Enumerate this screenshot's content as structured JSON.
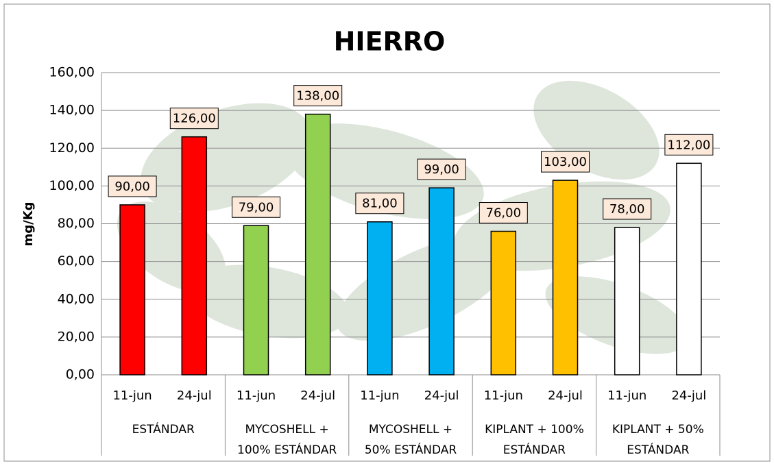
{
  "chart_data": {
    "type": "bar",
    "title": "HIERRO",
    "y_label": "mg/Kg",
    "categories": [
      "11-jun",
      "24-jul",
      "11-jun",
      "24-jul",
      "11-jun",
      "24-jul",
      "11-jun",
      "24-jul",
      "11-jun",
      "24-jul"
    ],
    "groups": [
      [
        "ESTÁNDAR"
      ],
      [
        "MYCOSHELL +",
        "100% ESTÁNDAR"
      ],
      [
        "MYCOSHELL +",
        "50% ESTÁNDAR"
      ],
      [
        "KIPLANT + 100%",
        "ESTÁNDAR"
      ],
      [
        "KIPLANT + 50%",
        "ESTÁNDAR"
      ]
    ],
    "values": [
      90,
      126,
      79,
      138,
      81,
      99,
      76,
      103,
      78,
      112
    ],
    "value_labels": [
      "90,00",
      "126,00",
      "79,00",
      "138,00",
      "81,00",
      "99,00",
      "76,00",
      "103,00",
      "78,00",
      "112,00"
    ],
    "colors": [
      "#ff0000",
      "#ff0000",
      "#92d050",
      "#92d050",
      "#00b0f0",
      "#00b0f0",
      "#ffc000",
      "#ffc000",
      "#ffffff",
      "#ffffff"
    ],
    "ylim": [
      0,
      160
    ],
    "yticks": [
      {
        "value": 0,
        "label": "0,00"
      },
      {
        "value": 20,
        "label": "20,00"
      },
      {
        "value": 40,
        "label": "40,00"
      },
      {
        "value": 60,
        "label": "60,00"
      },
      {
        "value": 80,
        "label": "80,00"
      },
      {
        "value": 100,
        "label": "100,00"
      },
      {
        "value": 120,
        "label": "120,00"
      },
      {
        "value": 140,
        "label": "140,00"
      },
      {
        "value": 160,
        "label": "160,00"
      }
    ],
    "grid": true
  }
}
